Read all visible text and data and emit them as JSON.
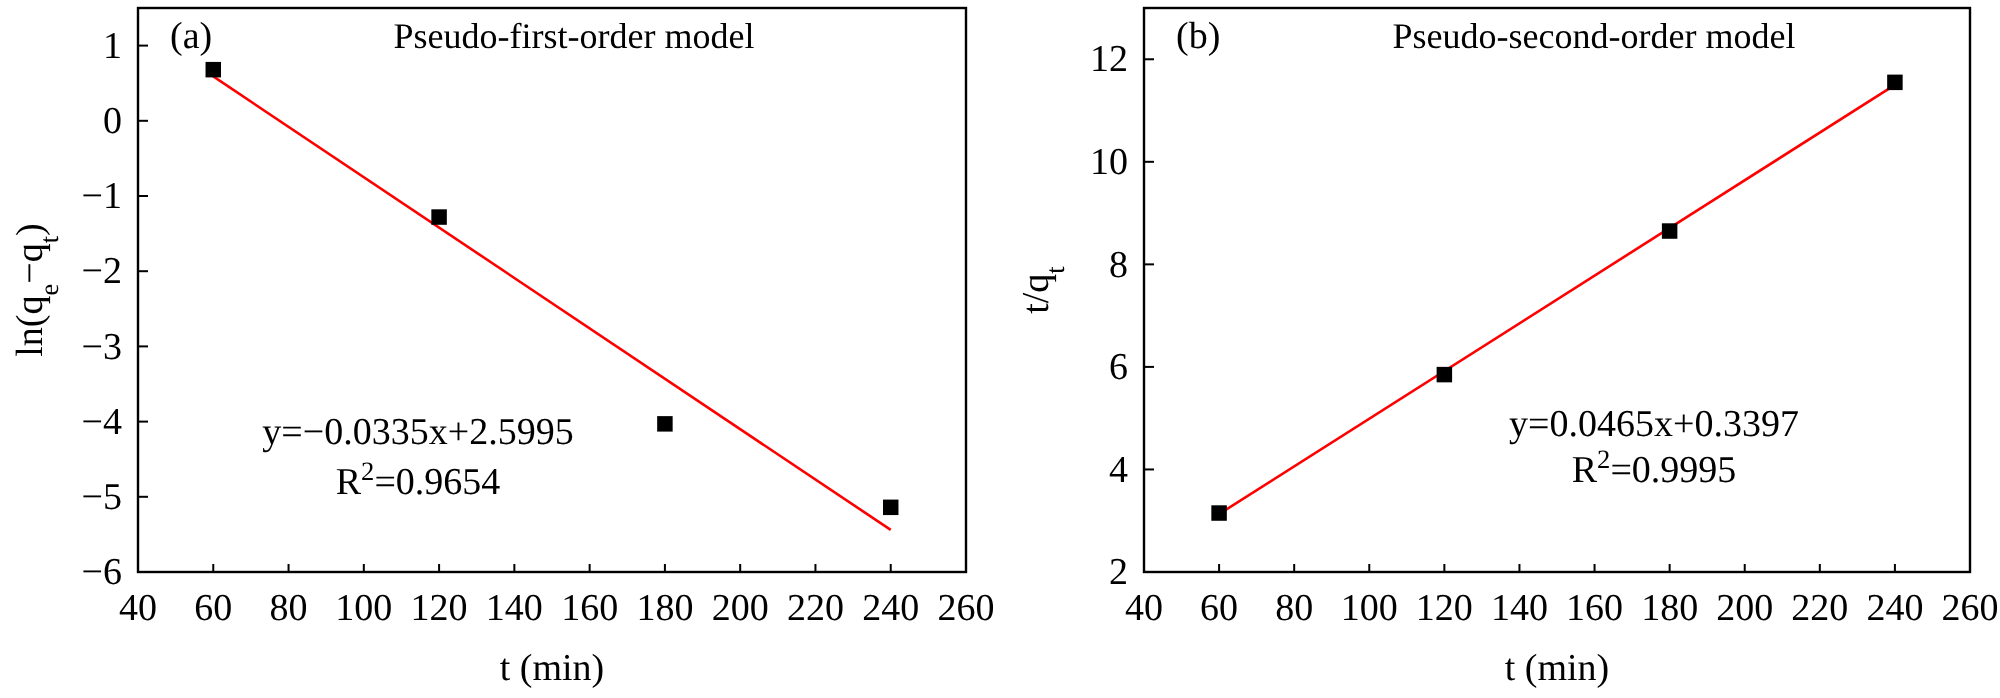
{
  "chart_data": [
    {
      "type": "scatter",
      "xlabel": "t (min)",
      "ylabel": "ln(q$_{e}$−q$_{t}$)",
      "annotations": [
        "(a)",
        "Pseudo-first-order model",
        "y=−0.0335x+2.5995",
        "R$^{2}$=0.9654"
      ],
      "xlim": [
        40,
        260
      ],
      "xticks": [
        40,
        60,
        80,
        100,
        120,
        140,
        160,
        180,
        200,
        220,
        240,
        260
      ],
      "ylim": [
        -6,
        1.5
      ],
      "yticks": [
        -6,
        -5,
        -4,
        -3,
        -2,
        -1,
        0,
        1
      ],
      "series": [
        {
          "color": "#000000",
          "marker": "square",
          "x": [
            60,
            120,
            180,
            240
          ],
          "values": [
            0.68,
            -1.28,
            -4.03,
            -5.14
          ]
        },
        {
          "type": "line",
          "marker": "none",
          "color": "#ff0000",
          "x": [
            60,
            240
          ],
          "values": [
            0.59,
            -5.44
          ]
        }
      ]
    },
    {
      "type": "scatter",
      "xlabel": "t (min)",
      "ylabel": "t/q$_{t}$",
      "annotations": [
        "(b)",
        "Pseudo-second-order model",
        "y=0.0465x+0.3397",
        "R$^{2}$=0.9995"
      ],
      "xlim": [
        40,
        260
      ],
      "xticks": [
        40,
        60,
        80,
        100,
        120,
        140,
        160,
        180,
        200,
        220,
        240,
        260
      ],
      "ylim": [
        2,
        13
      ],
      "yticks": [
        2,
        4,
        6,
        8,
        10,
        12
      ],
      "series": [
        {
          "color": "#000000",
          "marker": "square",
          "x": [
            60,
            120,
            180,
            240
          ],
          "values": [
            3.15,
            5.85,
            8.65,
            11.55
          ]
        },
        {
          "type": "line",
          "marker": "none",
          "color": "#ff0000",
          "x": [
            60,
            240
          ],
          "values": [
            3.13,
            11.5
          ]
        }
      ]
    }
  ]
}
